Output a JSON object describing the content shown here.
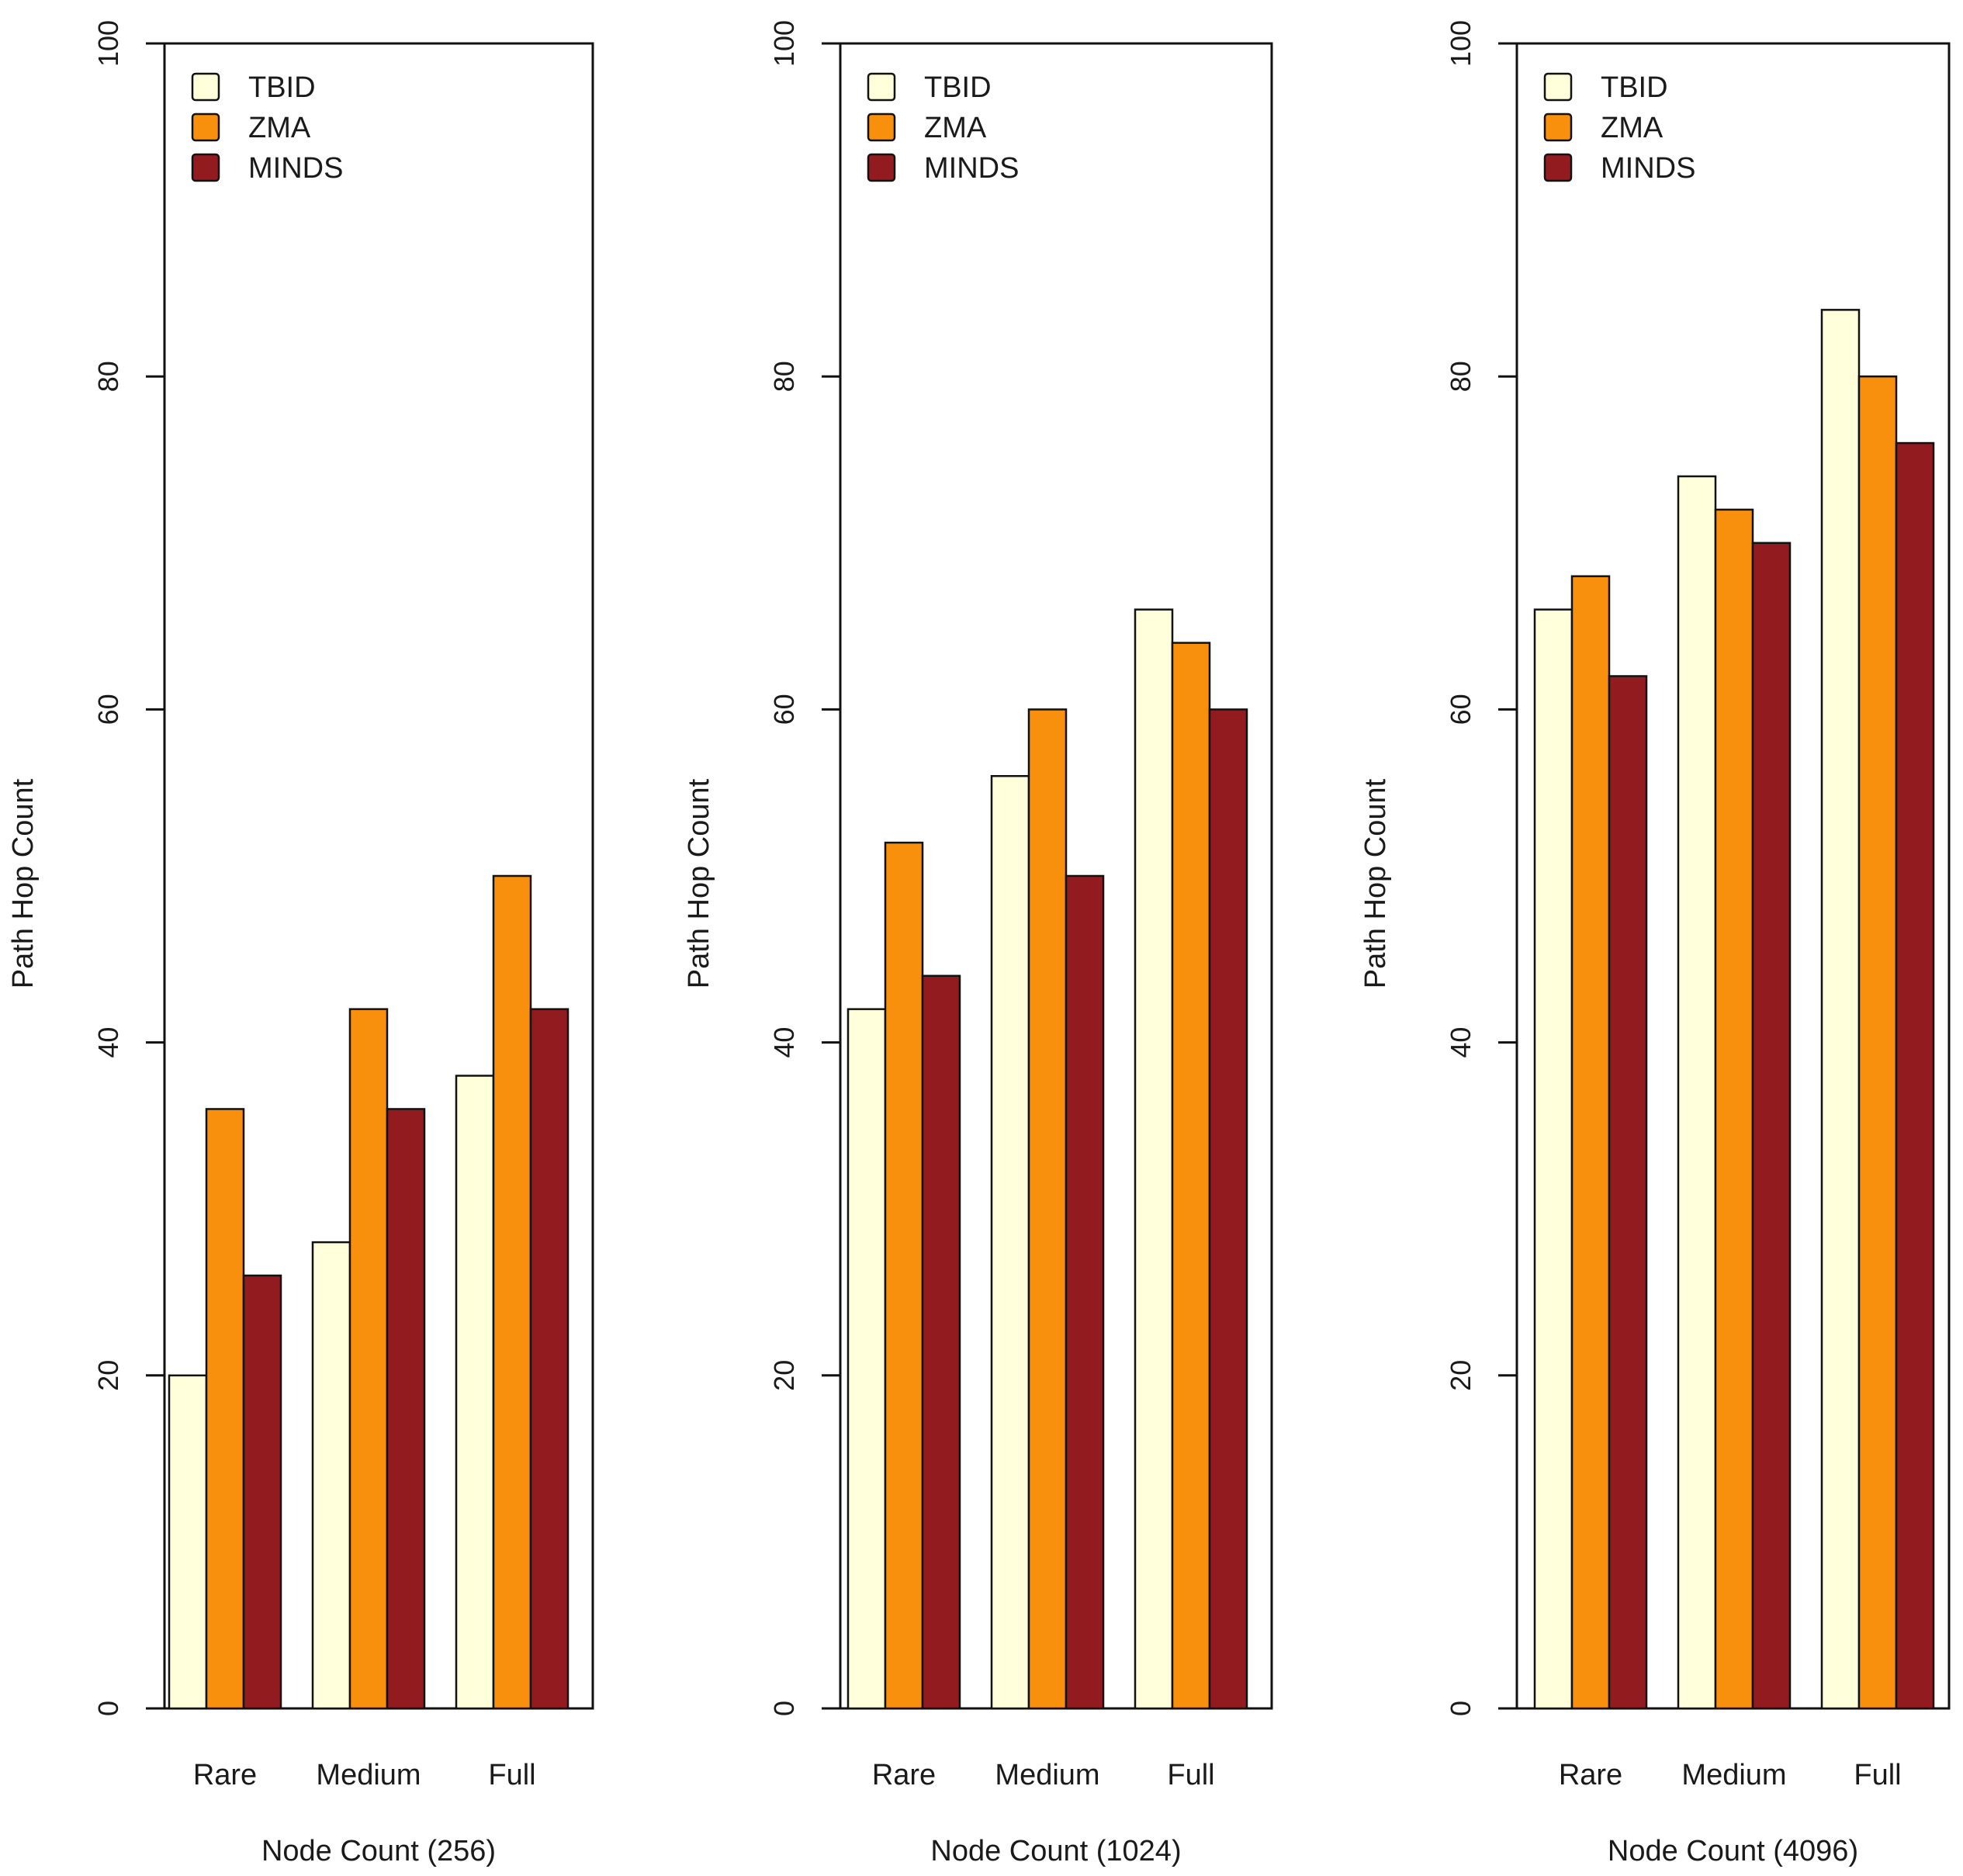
{
  "legend_labels": [
    "TBID",
    "ZMA",
    "MINDS"
  ],
  "colors": {
    "TBID": "#ffffdc",
    "ZMA": "#f8900e",
    "MINDS": "#921b20",
    "stroke": "#111111"
  },
  "chart_data": [
    {
      "type": "bar",
      "xlabel": "Node Count (256)",
      "ylabel": "Path Hop Count",
      "ylim": [
        0,
        100
      ],
      "yticks": [
        "0",
        "20",
        "40",
        "60",
        "80",
        "100"
      ],
      "categories": [
        "Rare",
        "Medium",
        "Full"
      ],
      "series": [
        {
          "name": "TBID",
          "values": [
            20,
            28,
            38
          ]
        },
        {
          "name": "ZMA",
          "values": [
            36,
            42,
            50
          ]
        },
        {
          "name": "MINDS",
          "values": [
            26,
            36,
            42
          ]
        }
      ],
      "legend": "top-left"
    },
    {
      "type": "bar",
      "xlabel": "Node Count (1024)",
      "ylabel": "Path Hop Count",
      "ylim": [
        0,
        100
      ],
      "yticks": [
        "0",
        "20",
        "40",
        "60",
        "80",
        "100"
      ],
      "categories": [
        "Rare",
        "Medium",
        "Full"
      ],
      "series": [
        {
          "name": "TBID",
          "values": [
            42,
            56,
            66
          ]
        },
        {
          "name": "ZMA",
          "values": [
            52,
            60,
            64
          ]
        },
        {
          "name": "MINDS",
          "values": [
            44,
            50,
            60
          ]
        }
      ],
      "legend": "top-left"
    },
    {
      "type": "bar",
      "xlabel": "Node Count (4096)",
      "ylabel": "Path Hop Count",
      "ylim": [
        0,
        100
      ],
      "yticks": [
        "0",
        "20",
        "40",
        "60",
        "80",
        "100"
      ],
      "categories": [
        "Rare",
        "Medium",
        "Full"
      ],
      "series": [
        {
          "name": "TBID",
          "values": [
            66,
            74,
            84
          ]
        },
        {
          "name": "ZMA",
          "values": [
            68,
            72,
            80
          ]
        },
        {
          "name": "MINDS",
          "values": [
            62,
            70,
            76
          ]
        }
      ],
      "legend": "top-left"
    }
  ]
}
